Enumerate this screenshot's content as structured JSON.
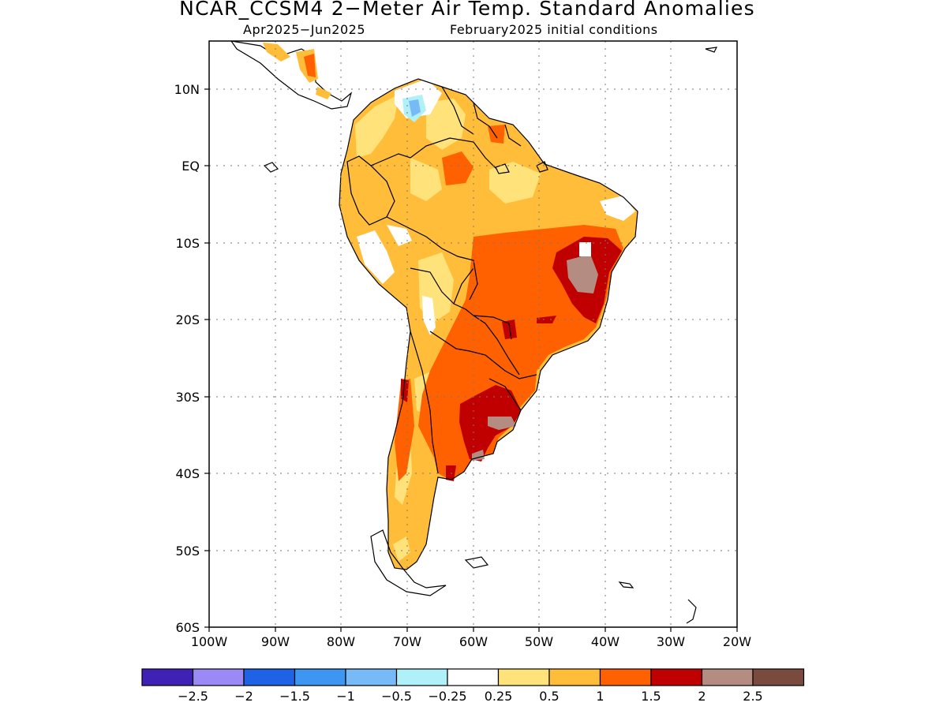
{
  "title": "NCAR_CCSM4 2−Meter Air Temp. Standard Anomalies",
  "subtitle_left": "Apr2025−Jun2025",
  "subtitle_right": "February2025 initial conditions",
  "axes": {
    "lat_labels": [
      "10N",
      "EQ",
      "10S",
      "20S",
      "30S",
      "40S",
      "50S",
      "60S"
    ],
    "lon_labels": [
      "100W",
      "90W",
      "80W",
      "70W",
      "60W",
      "50W",
      "40W",
      "30W",
      "20W"
    ]
  },
  "colorbar": {
    "colors": [
      "#3f22b5",
      "#9b8af5",
      "#1e63e6",
      "#3d96f2",
      "#78baf7",
      "#b0f0f8",
      "#ffffff",
      "#ffe37a",
      "#ffbd3a",
      "#ff6000",
      "#c00000",
      "#b48c82",
      "#7a4a3e"
    ],
    "labels": [
      "−2.5",
      "−2",
      "−1.5",
      "−1",
      "−0.5",
      "−0.25",
      "0.25",
      "0.5",
      "1",
      "1.5",
      "2",
      "2.5"
    ]
  }
}
